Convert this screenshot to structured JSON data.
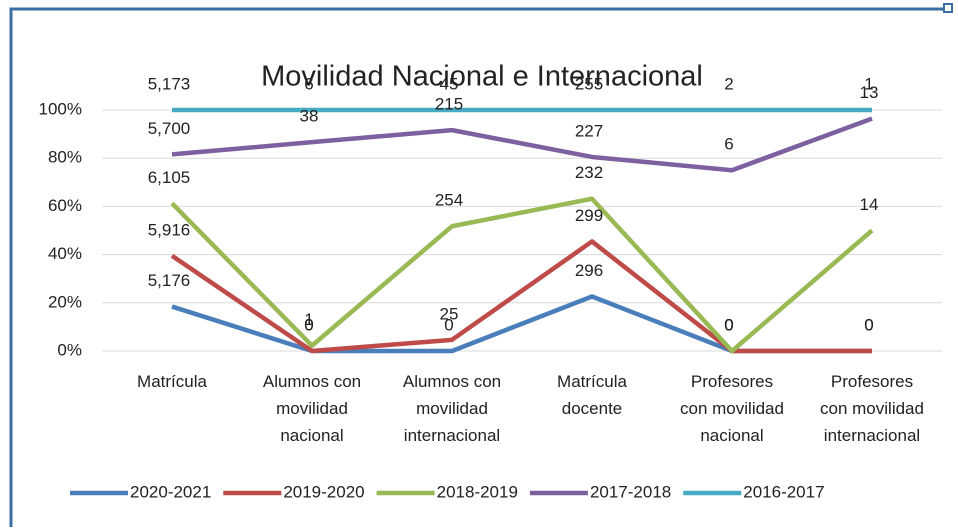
{
  "chart_data": {
    "type": "line",
    "stacking": "percent",
    "title": "Movilidad Nacional e Internacional",
    "categories": [
      "Matrícula",
      "Alumnos con movilidad nacional",
      "Alumnos con movilidad internacional",
      "Matrícula docente",
      "Profesores con movilidad nacional",
      "Profesores con movilidad internacional"
    ],
    "series": [
      {
        "name": "2020-2021",
        "color": "#4a7ebb",
        "values": [
          5176,
          0,
          0,
          296,
          0,
          0
        ],
        "value_labels": [
          "5,176",
          "0",
          "0",
          "296",
          "0",
          "0"
        ]
      },
      {
        "name": "2019-2020",
        "color": "#be4b48",
        "values": [
          5916,
          0,
          25,
          299,
          0,
          0
        ],
        "value_labels": [
          "5,916",
          "0",
          "25",
          "299",
          "0",
          "0"
        ]
      },
      {
        "name": "2018-2019",
        "color": "#98b954",
        "values": [
          6105,
          1,
          254,
          232,
          0,
          14
        ],
        "value_labels": [
          "6,105",
          "1",
          "254",
          "232",
          "0",
          "14"
        ]
      },
      {
        "name": "2017-2018",
        "color": "#7d60a0",
        "values": [
          5700,
          38,
          215,
          227,
          6,
          13
        ],
        "value_labels": [
          "5,700",
          "38",
          "215",
          "227",
          "6",
          "13"
        ]
      },
      {
        "name": "2016-2017",
        "color": "#46aac5",
        "values": [
          5173,
          6,
          45,
          255,
          2,
          1
        ],
        "value_labels": [
          "5,173",
          "6",
          "45",
          "255",
          "2",
          "1"
        ]
      }
    ],
    "ylim": [
      0,
      100
    ],
    "yticks": [
      {
        "value": 0,
        "label": "0%"
      },
      {
        "value": 20,
        "label": "20%"
      },
      {
        "value": 40,
        "label": "40%"
      },
      {
        "value": 60,
        "label": "60%"
      },
      {
        "value": 80,
        "label": "80%"
      },
      {
        "value": 100,
        "label": "100%"
      }
    ],
    "grid": true,
    "legend": "bottom"
  }
}
